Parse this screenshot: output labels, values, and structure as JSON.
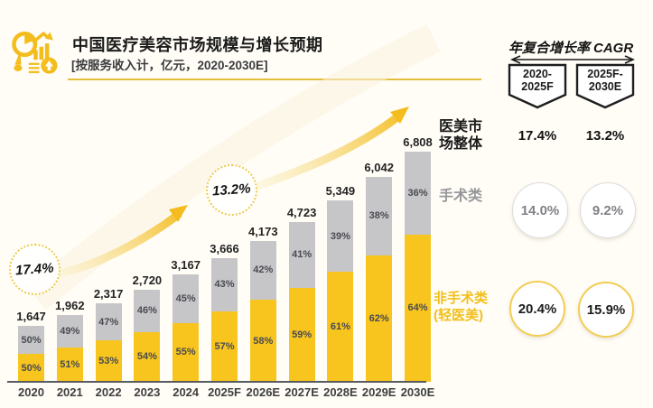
{
  "header": {
    "title": "中国医疗美容市场规模与增长预期",
    "subtitle": "[按服务收入计，亿元，2020-2030E]"
  },
  "chart_data": {
    "type": "bar",
    "stacked": true,
    "title": "中国医疗美容市场规模与增长预期",
    "unit_note": "按服务收入计, 亿元, 2020-2030E",
    "categories": [
      "2020",
      "2021",
      "2022",
      "2023",
      "2024",
      "2025F",
      "2026E",
      "2027E",
      "2028E",
      "2029E",
      "2030E"
    ],
    "totals": [
      1647,
      1962,
      2317,
      2720,
      3167,
      3666,
      4173,
      4723,
      5349,
      6042,
      6808
    ],
    "total_labels": [
      "1,647",
      "1,962",
      "2,317",
      "2,720",
      "3,167",
      "3,666",
      "4,173",
      "4,723",
      "5,349",
      "6,042",
      "6,808"
    ],
    "series": [
      {
        "name": "非手术类(轻医美)",
        "color": "#F7C51E",
        "pct": [
          50,
          51,
          53,
          54,
          55,
          57,
          58,
          59,
          61,
          62,
          64
        ]
      },
      {
        "name": "手术类",
        "color": "#C6C6C8",
        "pct": [
          50,
          49,
          47,
          46,
          45,
          43,
          42,
          41,
          39,
          38,
          36
        ]
      }
    ],
    "annotations": [
      {
        "label": "17.4%"
      },
      {
        "label": "13.2%"
      }
    ],
    "legend": {
      "overall": "医美市\n场整体",
      "surgical": "手术类",
      "non_surgical": "非手术类\n(轻医美)"
    },
    "ylim": [
      0,
      7000
    ],
    "grid": false
  },
  "cagr_panel": {
    "title": "年复合增长率 CAGR",
    "periods": [
      {
        "line1": "2020-",
        "line2": "2025F"
      },
      {
        "line1": "2025F-",
        "line2": "2030E"
      }
    ],
    "rows": [
      {
        "name": "overall",
        "values": [
          "17.4%",
          "13.2%"
        ]
      },
      {
        "name": "surgical",
        "values": [
          "14.0%",
          "9.2%"
        ]
      },
      {
        "name": "non_surgical",
        "values": [
          "20.4%",
          "15.9%"
        ]
      }
    ]
  },
  "colors": {
    "accent_gold": "#F2BD1D",
    "bar_yellow": "#F7C51E",
    "bar_gray": "#C6C6C8",
    "background": "#FFFDF6"
  }
}
